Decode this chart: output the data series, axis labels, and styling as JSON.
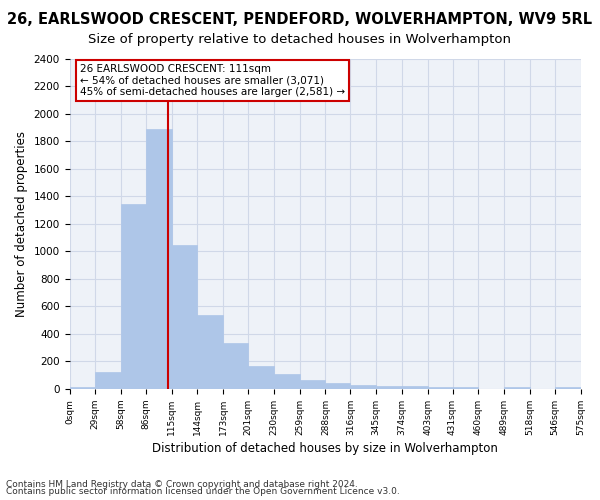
{
  "title1": "26, EARLSWOOD CRESCENT, PENDEFORD, WOLVERHAMPTON, WV9 5RL",
  "title2": "Size of property relative to detached houses in Wolverhampton",
  "xlabel": "Distribution of detached houses by size in Wolverhampton",
  "ylabel": "Number of detached properties",
  "footnote1": "Contains HM Land Registry data © Crown copyright and database right 2024.",
  "footnote2": "Contains public sector information licensed under the Open Government Licence v3.0.",
  "bar_edges": [
    0,
    29,
    58,
    86,
    115,
    144,
    173,
    201,
    230,
    259,
    288,
    316,
    345,
    374,
    403,
    431,
    460,
    489,
    518,
    546,
    575
  ],
  "bar_heights": [
    15,
    125,
    1345,
    1890,
    1045,
    540,
    335,
    170,
    110,
    63,
    40,
    30,
    25,
    20,
    15,
    12,
    0,
    12,
    0,
    15
  ],
  "bar_color": "#aec6e8",
  "bar_edgecolor": "#aec6e8",
  "grid_color": "#d0d8e8",
  "bg_color": "#eef2f8",
  "vline_x": 111,
  "vline_color": "#cc0000",
  "annotation_line1": "26 EARLSWOOD CRESCENT: 111sqm",
  "annotation_line2": "← 54% of detached houses are smaller (3,071)",
  "annotation_line3": "45% of semi-detached houses are larger (2,581) →",
  "ylim": [
    0,
    2400
  ],
  "yticks": [
    0,
    200,
    400,
    600,
    800,
    1000,
    1200,
    1400,
    1600,
    1800,
    2000,
    2200,
    2400
  ],
  "xtick_labels": [
    "0sqm",
    "29sqm",
    "58sqm",
    "86sqm",
    "115sqm",
    "144sqm",
    "173sqm",
    "201sqm",
    "230sqm",
    "259sqm",
    "288sqm",
    "316sqm",
    "345sqm",
    "374sqm",
    "403sqm",
    "431sqm",
    "460sqm",
    "489sqm",
    "518sqm",
    "546sqm",
    "575sqm"
  ],
  "title1_fontsize": 10.5,
  "title2_fontsize": 9.5,
  "xlabel_fontsize": 8.5,
  "ylabel_fontsize": 8.5,
  "footnote_fontsize": 6.5
}
